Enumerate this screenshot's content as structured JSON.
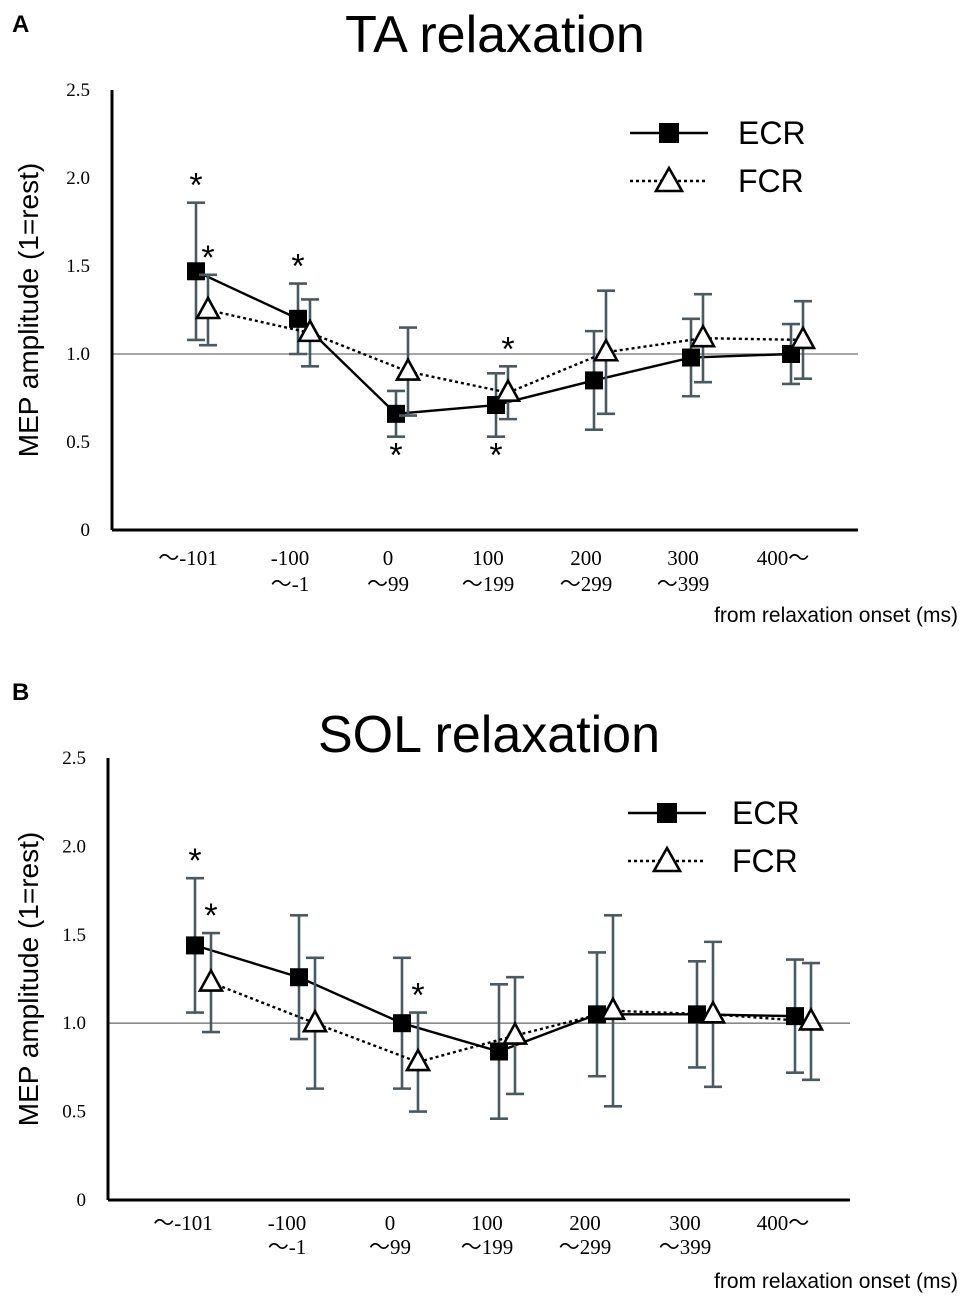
{
  "chart_data": [
    {
      "type": "line",
      "panel": "A",
      "title": "TA relaxation",
      "ylabel": "MEP amplitude (1=rest)",
      "xlabel": "from relaxation onset (ms)",
      "ylim": [
        0,
        2.5
      ],
      "yticks": [
        "0",
        "0.5",
        "1.0",
        "1.5",
        "2.0",
        "2.5"
      ],
      "reference_line": 1.0,
      "categories": [
        [
          "～-101",
          ""
        ],
        [
          "-100",
          "～-1"
        ],
        [
          "0",
          "～99"
        ],
        [
          "100",
          "～199"
        ],
        [
          "200",
          "～299"
        ],
        [
          "300",
          "～399"
        ],
        [
          "400～",
          ""
        ]
      ],
      "legend_position": "top-right",
      "series": [
        {
          "name": "ECR",
          "marker": "filled-square",
          "line": "solid",
          "values": [
            1.47,
            1.2,
            0.66,
            0.71,
            0.85,
            0.98,
            1.0
          ],
          "error": [
            0.39,
            0.2,
            0.13,
            0.18,
            0.28,
            0.22,
            0.17
          ],
          "significant": [
            "above",
            "above",
            "below",
            "below",
            "",
            "",
            ""
          ]
        },
        {
          "name": "FCR",
          "marker": "open-triangle",
          "line": "dotted",
          "values": [
            1.25,
            1.12,
            0.9,
            0.78,
            1.01,
            1.09,
            1.08
          ],
          "error": [
            0.2,
            0.19,
            0.25,
            0.15,
            0.35,
            0.25,
            0.22
          ],
          "significant": [
            "above",
            "",
            "",
            "above",
            "",
            "",
            ""
          ]
        }
      ]
    },
    {
      "type": "line",
      "panel": "B",
      "title": "SOL relaxation",
      "ylabel": "MEP amplitude (1=rest)",
      "xlabel": "from relaxation onset (ms)",
      "ylim": [
        0,
        2.5
      ],
      "yticks": [
        "0",
        "0.5",
        "1.0",
        "1.5",
        "2.0",
        "2.5"
      ],
      "reference_line": 1.0,
      "categories": [
        [
          "～-101",
          ""
        ],
        [
          "-100",
          "～-1"
        ],
        [
          "0",
          "～99"
        ],
        [
          "100",
          "～199"
        ],
        [
          "200",
          "～299"
        ],
        [
          "300",
          "～399"
        ],
        [
          "400～",
          ""
        ]
      ],
      "legend_position": "top-right",
      "series": [
        {
          "name": "ECR",
          "marker": "filled-square",
          "line": "solid",
          "values": [
            1.44,
            1.26,
            1.0,
            0.84,
            1.05,
            1.05,
            1.04
          ],
          "error": [
            0.38,
            0.35,
            0.37,
            0.38,
            0.35,
            0.3,
            0.32
          ],
          "significant": [
            "above",
            "",
            "",
            "",
            "",
            "",
            ""
          ]
        },
        {
          "name": "FCR",
          "marker": "open-triangle",
          "line": "dotted",
          "values": [
            1.23,
            1.0,
            0.78,
            0.93,
            1.07,
            1.05,
            1.01
          ],
          "error": [
            0.28,
            0.37,
            0.28,
            0.33,
            0.54,
            0.41,
            0.33
          ],
          "significant": [
            "above",
            "",
            "above",
            "",
            "",
            "",
            ""
          ]
        }
      ]
    }
  ]
}
